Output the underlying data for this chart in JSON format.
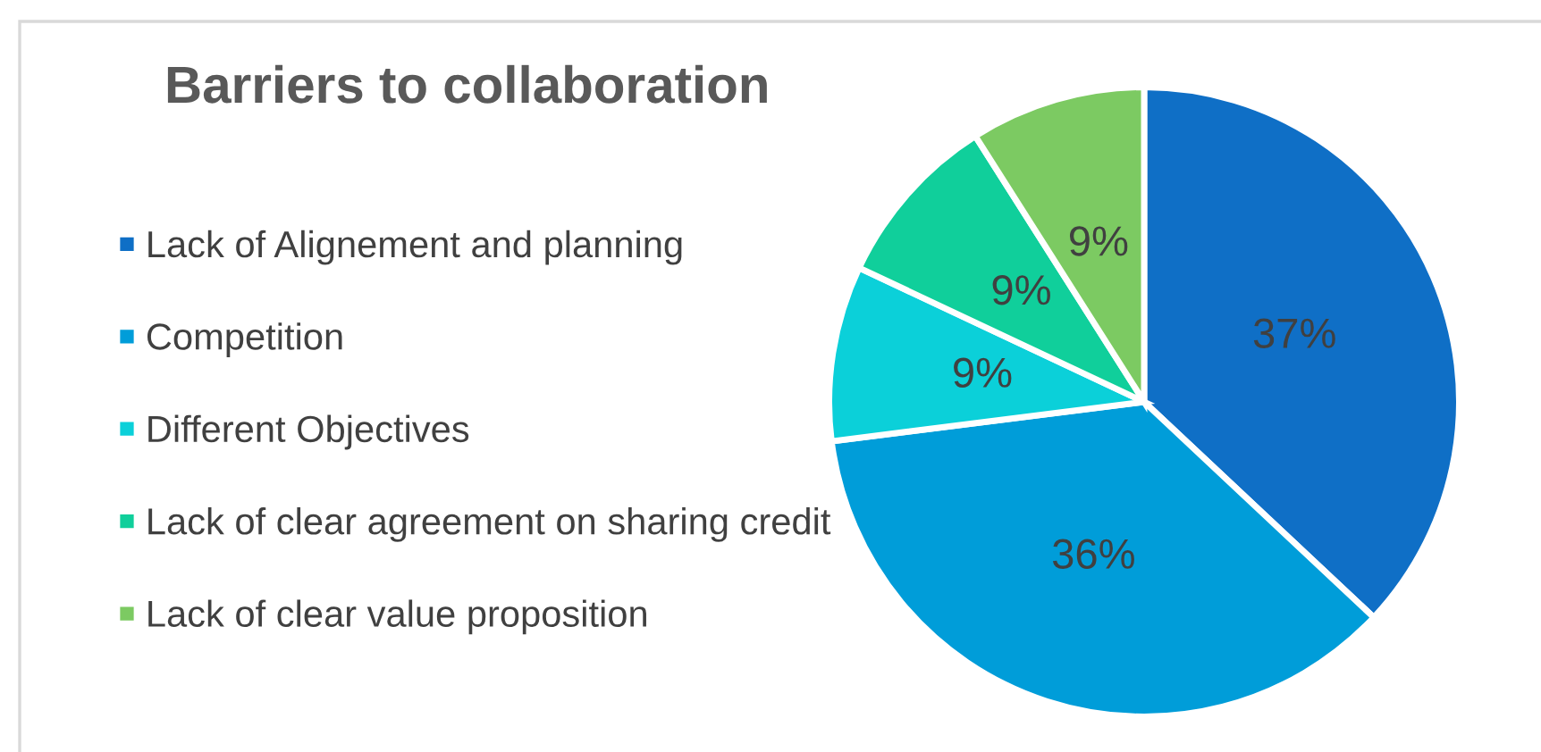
{
  "chart_data": {
    "type": "pie",
    "title": "Barriers to collaboration",
    "categories": [
      "Lack of Alignement and planning",
      "Competition",
      "Different Objectives",
      "Lack of clear agreement on sharing credit",
      "Lack of clear value proposition"
    ],
    "values": [
      37,
      36,
      9,
      9,
      9
    ],
    "colors": [
      "#0f6fc6",
      "#009dd9",
      "#0bd0d9",
      "#10cf9b",
      "#7cca62"
    ],
    "value_labels": [
      "37%",
      "36%",
      "9%",
      "9%",
      "9%"
    ],
    "legend": "left"
  }
}
